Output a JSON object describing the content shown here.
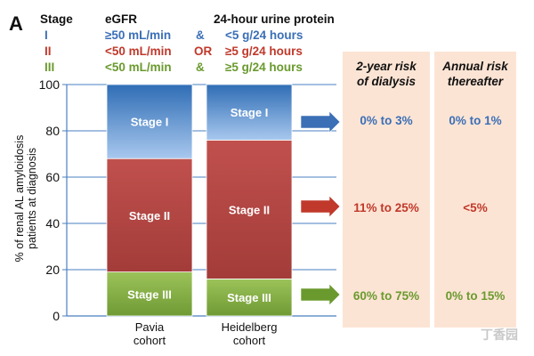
{
  "panel_label": "A",
  "legend": {
    "headers": [
      "Stage",
      "eGFR",
      "24-hour urine protein"
    ],
    "rows": [
      {
        "stage": "I",
        "egfr": "≥50 mL/min",
        "op": "&",
        "protein": "<5 g/24 hours",
        "color": "#3b6fb6"
      },
      {
        "stage": "II",
        "egfr": "<50 mL/min",
        "op": "OR",
        "protein": "≥5 g/24 hours",
        "color": "#c0392b"
      },
      {
        "stage": "III",
        "egfr": "<50 mL/min",
        "op": "&",
        "protein": "≥5 g/24 hours",
        "color": "#6a9a2e"
      }
    ]
  },
  "risk": {
    "col1_title_1": "2-year risk",
    "col1_title_2": "of dialysis",
    "col2_title_1": "Annual risk",
    "col2_title_2": "thereafter",
    "rows": [
      {
        "two_year": "0% to 3%",
        "annual": "0% to 1%",
        "color": "#3b6fb6"
      },
      {
        "two_year": "11% to 25%",
        "annual": "<5%",
        "color": "#c0392b"
      },
      {
        "two_year": "60% to 75%",
        "annual": "0% to 15%",
        "color": "#6a9a2e"
      }
    ]
  },
  "watermark": "丁香园",
  "chart_data": {
    "type": "bar",
    "stacked": true,
    "categories": [
      "Pavia cohort",
      "Heidelberg cohort"
    ],
    "category_lines": [
      [
        "Pavia",
        "cohort"
      ],
      [
        "Heidelberg",
        "cohort"
      ]
    ],
    "series": [
      {
        "name": "Stage III",
        "values": [
          19,
          16
        ],
        "color_top": "#9cc35a",
        "color_bottom": "#6f9a34"
      },
      {
        "name": "Stage II",
        "values": [
          49,
          60
        ],
        "color_top": "#c0504d",
        "color_bottom": "#a33c39"
      },
      {
        "name": "Stage I",
        "values": [
          32,
          24
        ],
        "color_top": "#2f6db5",
        "color_bottom": "#a8c8ee"
      }
    ],
    "ylabel_lines": [
      "% of renal AL amyloidosis",
      "patients  at diagnosis"
    ],
    "ylim": [
      0,
      100
    ],
    "yticks": [
      0,
      20,
      40,
      60,
      80,
      100
    ],
    "grid": true
  }
}
